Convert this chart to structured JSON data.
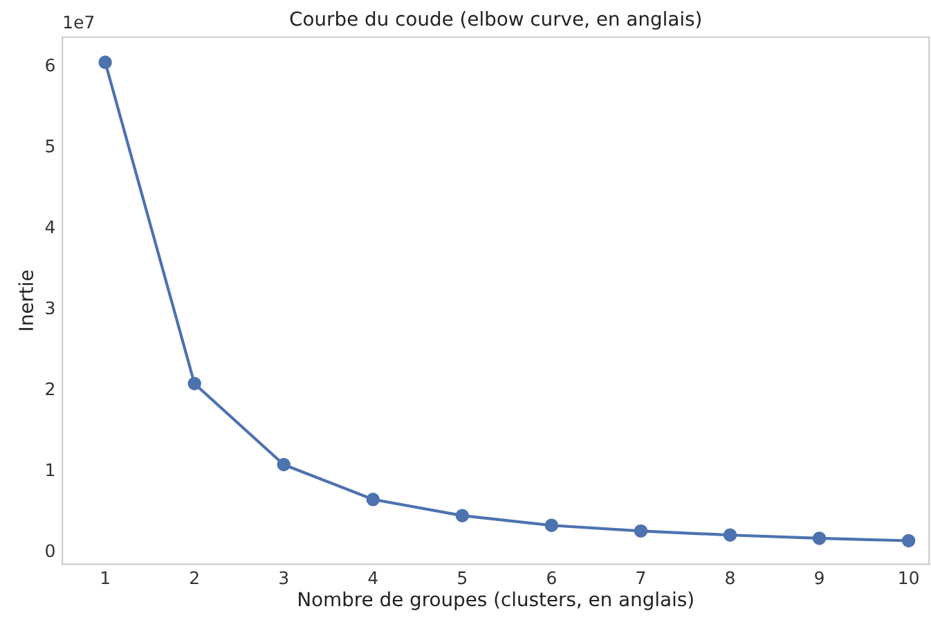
{
  "chart_data": {
    "type": "line",
    "title": "Courbe du coude (elbow curve, en anglais)",
    "xlabel": "Nombre de groupes (clusters, en anglais)",
    "ylabel": "Inertie",
    "x": [
      1,
      2,
      3,
      4,
      5,
      6,
      7,
      8,
      9,
      10
    ],
    "series": [
      {
        "color": "#4c72b0",
        "values": [
          6.03,
          2.06,
          1.06,
          0.63,
          0.43,
          0.31,
          0.24,
          0.19,
          0.15,
          0.12
        ]
      }
    ],
    "xlim": [
      0.52,
      10.23
    ],
    "xticks": [
      1,
      2,
      3,
      4,
      5,
      6,
      7,
      8,
      9,
      10
    ],
    "ylim": [
      -0.17,
      6.34
    ],
    "yticks": [
      0,
      1,
      2,
      3,
      4,
      5,
      6
    ],
    "annotations": [
      "1e7"
    ],
    "grid": false,
    "marker": "circle",
    "line_style": "solid"
  }
}
